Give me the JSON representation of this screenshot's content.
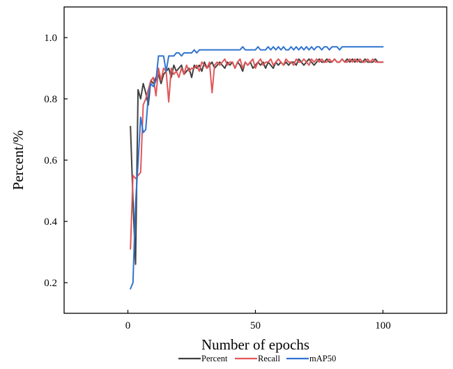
{
  "chart_data": {
    "type": "line",
    "title": "",
    "xlabel": "Number of epochs",
    "ylabel": "Percent/%",
    "xlim": [
      -25,
      125
    ],
    "ylim": [
      0.1,
      1.1
    ],
    "x_ticks": [
      0,
      50,
      100
    ],
    "y_ticks": [
      0.2,
      0.4,
      0.6,
      0.8,
      1.0
    ],
    "x_tick_labels": [
      "0",
      "50",
      "100"
    ],
    "y_tick_labels": [
      "0.2",
      "0.4",
      "0.6",
      "0.8",
      "1.0"
    ],
    "grid": false,
    "legend_position": "bottom",
    "x": [
      1,
      2,
      3,
      4,
      5,
      6,
      7,
      8,
      9,
      10,
      11,
      12,
      13,
      14,
      15,
      16,
      17,
      18,
      19,
      20,
      21,
      22,
      23,
      24,
      25,
      26,
      27,
      28,
      29,
      30,
      31,
      32,
      33,
      34,
      35,
      36,
      37,
      38,
      39,
      40,
      41,
      42,
      43,
      44,
      45,
      46,
      47,
      48,
      49,
      50,
      51,
      52,
      53,
      54,
      55,
      56,
      57,
      58,
      59,
      60,
      61,
      62,
      63,
      64,
      65,
      66,
      67,
      68,
      69,
      70,
      71,
      72,
      73,
      74,
      75,
      76,
      77,
      78,
      79,
      80,
      81,
      82,
      83,
      84,
      85,
      86,
      87,
      88,
      89,
      90,
      91,
      92,
      93,
      94,
      95,
      96,
      97,
      98,
      99,
      100
    ],
    "series": [
      {
        "name": "Percent",
        "color": "#404040",
        "values": [
          0.71,
          0.47,
          0.26,
          0.83,
          0.8,
          0.85,
          0.82,
          0.78,
          0.86,
          0.85,
          0.87,
          0.88,
          0.85,
          0.88,
          0.89,
          0.9,
          0.87,
          0.91,
          0.89,
          0.9,
          0.91,
          0.88,
          0.89,
          0.9,
          0.87,
          0.91,
          0.9,
          0.91,
          0.89,
          0.92,
          0.9,
          0.91,
          0.92,
          0.9,
          0.91,
          0.92,
          0.91,
          0.9,
          0.92,
          0.91,
          0.92,
          0.9,
          0.92,
          0.91,
          0.89,
          0.92,
          0.91,
          0.92,
          0.9,
          0.91,
          0.92,
          0.91,
          0.92,
          0.9,
          0.92,
          0.91,
          0.9,
          0.92,
          0.91,
          0.92,
          0.91,
          0.92,
          0.91,
          0.92,
          0.92,
          0.91,
          0.93,
          0.92,
          0.91,
          0.92,
          0.93,
          0.92,
          0.91,
          0.92,
          0.93,
          0.92,
          0.92,
          0.93,
          0.92,
          0.92,
          0.93,
          0.92,
          0.92,
          0.93,
          0.92,
          0.93,
          0.92,
          0.93,
          0.92,
          0.93,
          0.92,
          0.92,
          0.93,
          0.92,
          0.92,
          0.92,
          0.93,
          0.92,
          0.92,
          0.92
        ]
      },
      {
        "name": "Recall",
        "color": "#e15759",
        "values": [
          0.31,
          0.55,
          0.54,
          0.55,
          0.56,
          0.78,
          0.8,
          0.83,
          0.86,
          0.87,
          0.81,
          0.9,
          0.86,
          0.9,
          0.89,
          0.79,
          0.9,
          0.88,
          0.89,
          0.87,
          0.9,
          0.88,
          0.91,
          0.89,
          0.9,
          0.9,
          0.91,
          0.89,
          0.92,
          0.91,
          0.9,
          0.92,
          0.82,
          0.91,
          0.92,
          0.91,
          0.92,
          0.93,
          0.91,
          0.92,
          0.92,
          0.9,
          0.92,
          0.93,
          0.9,
          0.92,
          0.91,
          0.92,
          0.93,
          0.9,
          0.92,
          0.93,
          0.91,
          0.92,
          0.92,
          0.93,
          0.91,
          0.92,
          0.93,
          0.92,
          0.91,
          0.93,
          0.92,
          0.92,
          0.91,
          0.93,
          0.92,
          0.92,
          0.93,
          0.92,
          0.91,
          0.93,
          0.92,
          0.93,
          0.92,
          0.93,
          0.92,
          0.92,
          0.93,
          0.92,
          0.93,
          0.92,
          0.92,
          0.93,
          0.92,
          0.92,
          0.93,
          0.92,
          0.93,
          0.92,
          0.93,
          0.92,
          0.92,
          0.93,
          0.92,
          0.93,
          0.92,
          0.92,
          0.92,
          0.92
        ]
      },
      {
        "name": "mAP50",
        "color": "#2f74d0",
        "values": [
          0.18,
          0.2,
          0.46,
          0.59,
          0.74,
          0.69,
          0.7,
          0.81,
          0.85,
          0.84,
          0.86,
          0.94,
          0.94,
          0.94,
          0.89,
          0.94,
          0.94,
          0.94,
          0.95,
          0.95,
          0.94,
          0.95,
          0.95,
          0.95,
          0.95,
          0.96,
          0.95,
          0.96,
          0.96,
          0.96,
          0.96,
          0.96,
          0.96,
          0.96,
          0.96,
          0.96,
          0.96,
          0.96,
          0.96,
          0.96,
          0.96,
          0.96,
          0.96,
          0.96,
          0.97,
          0.96,
          0.96,
          0.96,
          0.96,
          0.96,
          0.97,
          0.96,
          0.96,
          0.96,
          0.97,
          0.96,
          0.97,
          0.96,
          0.97,
          0.96,
          0.97,
          0.96,
          0.96,
          0.97,
          0.96,
          0.97,
          0.96,
          0.97,
          0.96,
          0.97,
          0.96,
          0.97,
          0.96,
          0.97,
          0.97,
          0.96,
          0.97,
          0.97,
          0.96,
          0.97,
          0.97,
          0.97,
          0.96,
          0.97,
          0.97,
          0.97,
          0.97,
          0.97,
          0.97,
          0.97,
          0.97,
          0.97,
          0.97,
          0.97,
          0.97,
          0.97,
          0.97,
          0.97,
          0.97,
          0.97
        ]
      }
    ]
  }
}
